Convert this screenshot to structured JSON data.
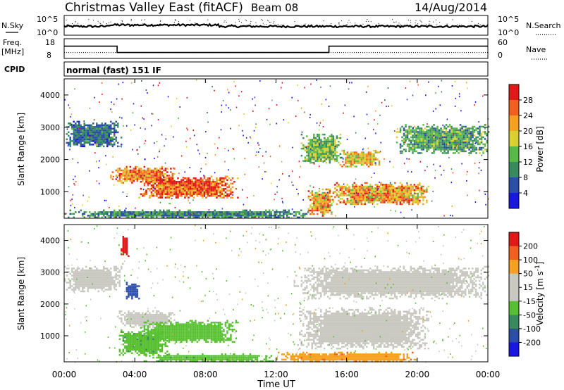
{
  "header": {
    "title": "Christmas Valley East (fitACF)",
    "beam": "Beam 08",
    "date": "14/Aug/2014"
  },
  "status_panels": {
    "nsky": {
      "label": "N.Sky",
      "tick_top": "10^5",
      "tick_bottom": "10^0"
    },
    "nsearch": {
      "label": "N.Search",
      "tick_top": "10^5",
      "tick_bottom": "10^0"
    },
    "freq": {
      "label_line1": "Freq.",
      "label_line2": "[MHz]",
      "tick_top": "18",
      "tick_bottom": "8"
    },
    "nave": {
      "label": "Nave",
      "tick_top": "60",
      "tick_bottom": "0"
    },
    "cpid": {
      "label": "CPID",
      "value": "normal (fast) 151 IF"
    }
  },
  "colors": {
    "power": [
      "#1818e0",
      "#2c4ea8",
      "#3a8a60",
      "#58b848",
      "#d8d030",
      "#f5a020",
      "#f06020",
      "#e01818"
    ],
    "velocity": [
      "#e01818",
      "#f06020",
      "#f5a020",
      "#c8c8c0",
      "#c8c8c0",
      "#58c030",
      "#3a8a60",
      "#2c4ea8",
      "#1818e0"
    ]
  },
  "chart_data": [
    {
      "type": "heatmap",
      "name": "power",
      "xlabel": "",
      "ylabel": "Slant Range [km]",
      "xlim": [
        0,
        24
      ],
      "ylim": [
        180,
        4500
      ],
      "yticks": [
        "1000",
        "2000",
        "3000",
        "4000"
      ],
      "xticks": [
        "00:00",
        "04:00",
        "08:00",
        "12:00",
        "16:00",
        "20:00",
        "00:00"
      ],
      "colorbar": {
        "label": "Power [dB]",
        "ticks": [
          "4",
          "8",
          "12",
          "16",
          "20",
          "24",
          "28"
        ],
        "range": [
          0,
          30
        ]
      },
      "regions": [
        {
          "t0": 0.0,
          "t1": 3.2,
          "r0": 2400,
          "r1": 3200,
          "level": 8
        },
        {
          "t0": 2.6,
          "t1": 6.2,
          "r0": 1300,
          "r1": 1800,
          "level": 24
        },
        {
          "t0": 4.2,
          "t1": 9.8,
          "r0": 800,
          "r1": 1500,
          "level": 26
        },
        {
          "t0": 0.0,
          "t1": 14.0,
          "r0": 200,
          "r1": 450,
          "level": 10
        },
        {
          "t0": 13.8,
          "t1": 15.2,
          "r0": 250,
          "r1": 1100,
          "level": 22
        },
        {
          "t0": 13.4,
          "t1": 15.6,
          "r0": 1900,
          "r1": 2800,
          "level": 14
        },
        {
          "t0": 15.2,
          "t1": 20.6,
          "r0": 600,
          "r1": 1300,
          "level": 22
        },
        {
          "t0": 15.6,
          "t1": 17.8,
          "r0": 1800,
          "r1": 2300,
          "level": 20
        },
        {
          "t0": 18.8,
          "t1": 24.0,
          "r0": 2200,
          "r1": 3100,
          "level": 12
        }
      ]
    },
    {
      "type": "heatmap",
      "name": "velocity",
      "xlabel": "Time UT",
      "ylabel": "Slant Range [km]",
      "xlim": [
        0,
        24
      ],
      "ylim": [
        180,
        4500
      ],
      "yticks": [
        "1000",
        "2000",
        "3000",
        "4000"
      ],
      "xticks": [
        "00:00",
        "04:00",
        "08:00",
        "12:00",
        "16:00",
        "20:00",
        "00:00"
      ],
      "colorbar": {
        "label": "Velocity [m s^-1]",
        "ticks": [
          "200",
          "100",
          "50",
          "15",
          "-15",
          "-50",
          "-100",
          "-200"
        ],
        "range": [
          -250,
          250
        ]
      },
      "regions": [
        {
          "t0": 0.0,
          "t1": 3.2,
          "r0": 2400,
          "r1": 3200,
          "level": 0
        },
        {
          "t0": 3.0,
          "t1": 6.3,
          "r0": 1300,
          "r1": 1800,
          "level": 0
        },
        {
          "t0": 4.2,
          "t1": 9.8,
          "r0": 800,
          "r1": 1500,
          "level": 30
        },
        {
          "t0": 3.0,
          "t1": 5.8,
          "r0": 400,
          "r1": 1200,
          "level": 40
        },
        {
          "t0": 4.5,
          "t1": 12.0,
          "r0": 200,
          "r1": 450,
          "level": 40
        },
        {
          "t0": 12.0,
          "t1": 20.0,
          "r0": 200,
          "r1": 500,
          "level": -40
        },
        {
          "t0": 13.2,
          "t1": 20.6,
          "r0": 600,
          "r1": 1900,
          "level": 0
        },
        {
          "t0": 13.0,
          "t1": 24.0,
          "r0": 2200,
          "r1": 3200,
          "level": 0
        },
        {
          "t0": 3.2,
          "t1": 3.6,
          "r0": 3500,
          "r1": 4200,
          "level": -150
        },
        {
          "t0": 3.4,
          "t1": 4.2,
          "r0": 2200,
          "r1": 2700,
          "level": 150
        }
      ]
    }
  ],
  "status_series": {
    "freq_mhz": [
      {
        "t0": 0,
        "t1": 3.0,
        "v": 14.2
      },
      {
        "t0": 3.0,
        "t1": 15.0,
        "v": 11.0
      },
      {
        "t0": 15.0,
        "t1": 24,
        "v": 14.2
      }
    ],
    "nave": [
      {
        "t0": 0,
        "t1": 24,
        "v": 18
      }
    ]
  }
}
